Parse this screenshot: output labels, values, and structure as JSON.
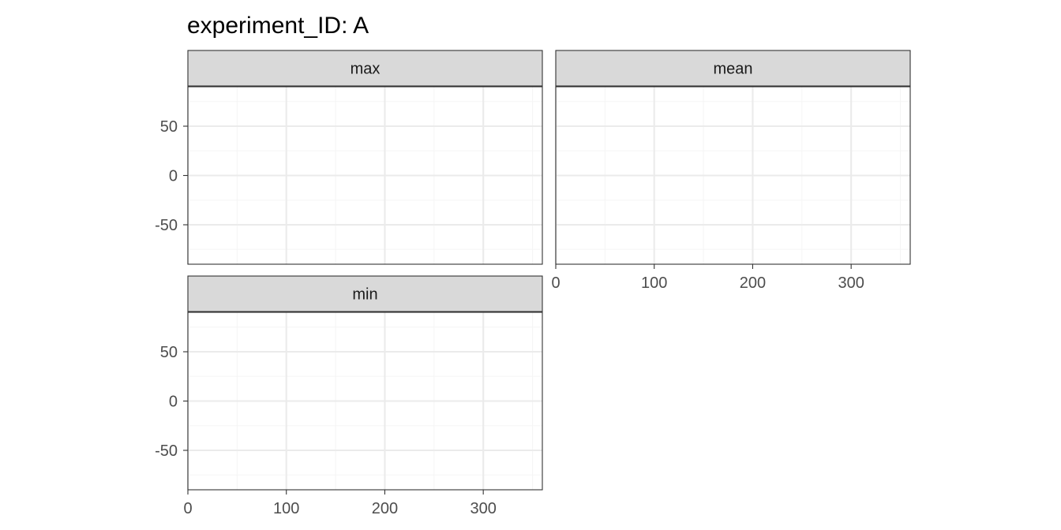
{
  "chart_data": {
    "type": "scatter",
    "title": "experiment_ID: A",
    "xlabel": "",
    "ylabel": "",
    "xlim": [
      0,
      360
    ],
    "ylim": [
      -90,
      90
    ],
    "x_ticks": [
      0,
      100,
      200,
      300
    ],
    "y_ticks": [
      -50,
      0,
      50
    ],
    "x_tick_labels": [
      "0",
      "100",
      "200",
      "300"
    ],
    "y_tick_labels": [
      "-50",
      "0",
      "50"
    ],
    "grid": true,
    "facets": [
      {
        "label": "max",
        "points": [],
        "show_x_axis": false,
        "show_y_axis": true
      },
      {
        "label": "mean",
        "points": [],
        "show_x_axis": true,
        "show_y_axis": false
      },
      {
        "label": "min",
        "points": [],
        "show_x_axis": true,
        "show_y_axis": true
      }
    ],
    "colors": {
      "strip_fill": "#d9d9d9",
      "strip_border": "#333333",
      "panel_border": "#333333",
      "grid_major": "#ebebeb",
      "grid_minor": "#f5f5f5",
      "tick_text": "#4d4d4d"
    }
  }
}
